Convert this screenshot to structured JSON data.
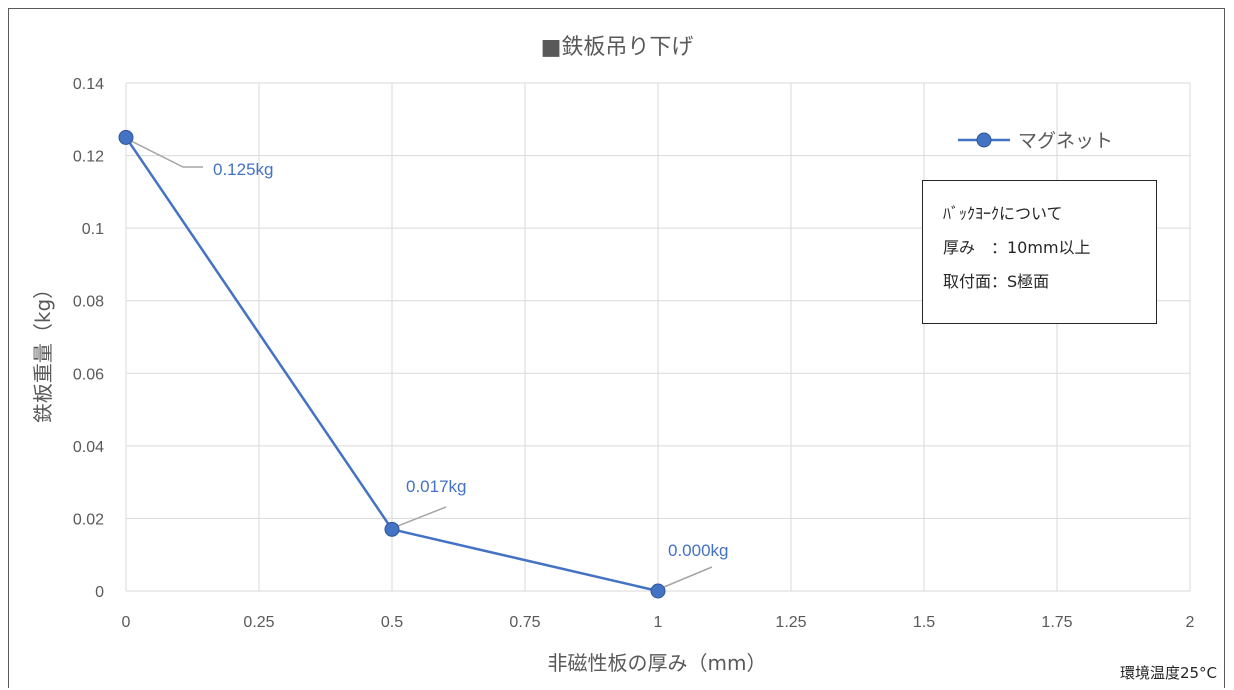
{
  "chart_data": {
    "type": "line",
    "title": "■鉄板吊り下げ",
    "xlabel": "非磁性板の厚み（mm）",
    "ylabel": "鉄板重量（kg）",
    "xlim": [
      0,
      2
    ],
    "ylim": [
      0,
      0.14
    ],
    "x_ticks": [
      "0",
      "0.25",
      "0.5",
      "0.75",
      "1",
      "1.25",
      "1.5",
      "1.75",
      "2"
    ],
    "y_ticks": [
      "0",
      "0.02",
      "0.04",
      "0.06",
      "0.08",
      "0.1",
      "0.12",
      "0.14"
    ],
    "grid": true,
    "legend_position": "top-right",
    "series": [
      {
        "name": "マグネット",
        "color": "#4472C4",
        "x": [
          0,
          0.5,
          1
        ],
        "values": [
          0.125,
          0.017,
          0.0
        ],
        "data_labels": [
          "0.125kg",
          "0.017kg",
          "0.000kg"
        ]
      }
    ]
  },
  "note_box": {
    "line1": "ﾊﾞｯｸﾖｰｸについて",
    "line2": "厚み　：10mm以上",
    "line3": "取付面：S極面"
  },
  "footnote": "環境温度25°C"
}
